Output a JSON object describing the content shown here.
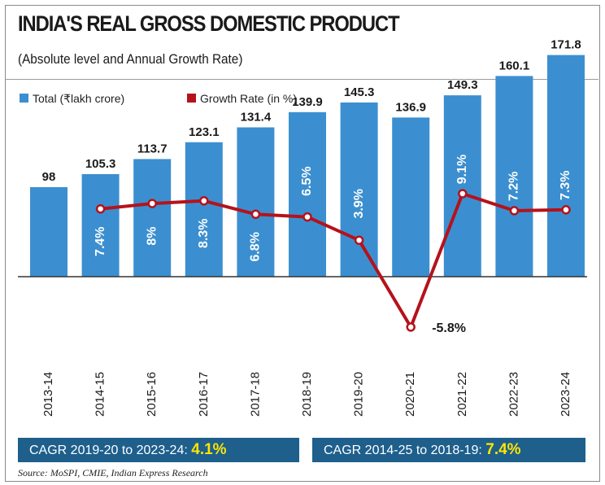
{
  "header": {
    "title": "INDIA'S REAL GROSS DOMESTIC PRODUCT",
    "subtitle": "(Absolute level and Annual Growth Rate)"
  },
  "legend": {
    "total_label": "Total (₹lakh crore)",
    "growth_label": "Growth Rate (in %)"
  },
  "colors": {
    "bar": "#3b8fd0",
    "line": "#b5121b",
    "cagr_bg": "#1e5f8c",
    "cagr_value": "#ffe500"
  },
  "chart_data": {
    "type": "bar",
    "title": "INDIA'S REAL GROSS DOMESTIC PRODUCT",
    "subtitle": "(Absolute level and Annual Growth Rate)",
    "categories": [
      "2013-14",
      "2014-15",
      "2015-16",
      "2016-17",
      "2017-18",
      "2018-19",
      "2019-20",
      "2020-21",
      "2021-22",
      "2022-23",
      "2023-24"
    ],
    "series": [
      {
        "name": "Total (₹lakh crore)",
        "type": "bar",
        "values": [
          98,
          105.3,
          113.7,
          123.1,
          131.4,
          139.9,
          145.3,
          136.9,
          149.3,
          160.1,
          171.8
        ],
        "labels": [
          "98",
          "105.3",
          "113.7",
          "123.1",
          "131.4",
          "139.9",
          "145.3",
          "136.9",
          "149.3",
          "160.1",
          "171.8"
        ]
      },
      {
        "name": "Growth Rate (in %)",
        "type": "line",
        "values": [
          null,
          7.4,
          8,
          8.3,
          6.8,
          6.5,
          3.9,
          -5.8,
          9.1,
          7.2,
          7.3
        ],
        "labels": [
          null,
          "7.4%",
          "8%",
          "8.3%",
          "6.8%",
          "6.5%",
          "3.9%",
          "-5.8%",
          "9.1%",
          "7.2%",
          "7.3%"
        ]
      }
    ],
    "legend_position": "top-left"
  },
  "cagr": {
    "left_label": "CAGR 2019-20 to 2023-24:",
    "left_value": "4.1%",
    "right_label": "CAGR 2014-25 to 2018-19:",
    "right_value": "7.4%"
  },
  "source": "Source: MoSPI, CMIE, Indian Express Research"
}
